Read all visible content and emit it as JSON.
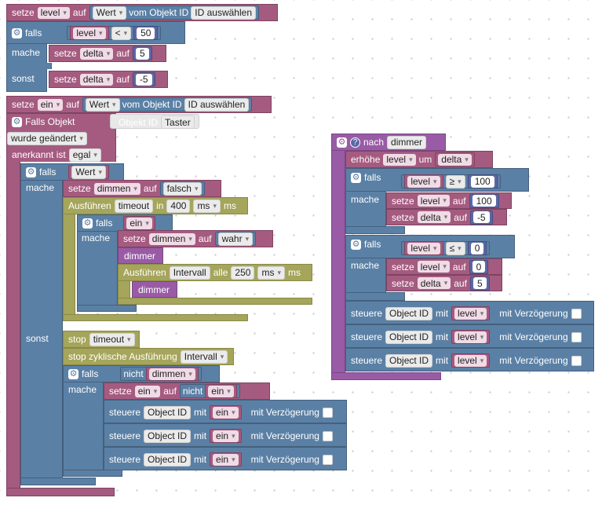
{
  "kw": {
    "setze": "setze",
    "auf": "auf",
    "falls": "falls",
    "mache": "mache",
    "sonst": "sonst",
    "vom_objekt_id": "vom Objekt ID",
    "falls_objekt": "Falls Objekt",
    "objekt_id": "Objekt ID",
    "wurde_geaendert": "wurde geändert",
    "anerkannt_ist": "anerkannt ist",
    "egal": "egal",
    "ausfuehren": "Ausführen",
    "in": "in",
    "ms": "ms",
    "alle": "alle",
    "stop": "stop",
    "stop_zyklisch": "stop zyklische Ausführung",
    "nicht": "nicht",
    "steuere": "steuere",
    "mit": "mit",
    "mit_verzoegerung": "mit Verzögerung",
    "nach": "nach",
    "erhoehe": "erhöhe",
    "um": "um"
  },
  "vars": {
    "level": "level",
    "delta": "delta",
    "ein": "ein",
    "dimmen": "dimmen",
    "timeout": "timeout",
    "intervall": "Intervall"
  },
  "values": {
    "wert": "Wert",
    "id_auswaehlen": "ID auswählen",
    "taster": "Taster",
    "falsch": "falsch",
    "wahr": "wahr",
    "object_id": "Object ID",
    "op_lt": "<",
    "op_ge": "≥",
    "op_le": "≤",
    "n50": "50",
    "n5": "5",
    "nm5": "-5",
    "n400": "400",
    "n250": "250",
    "n100": "100",
    "n0": "0",
    "proc_dimmer": "dimmer"
  },
  "colors": {
    "variables": "#a55b80",
    "logic": "#5b80a5",
    "timers": "#a5a55b",
    "math": "#5b67a5",
    "procedures": "#995ba5"
  }
}
